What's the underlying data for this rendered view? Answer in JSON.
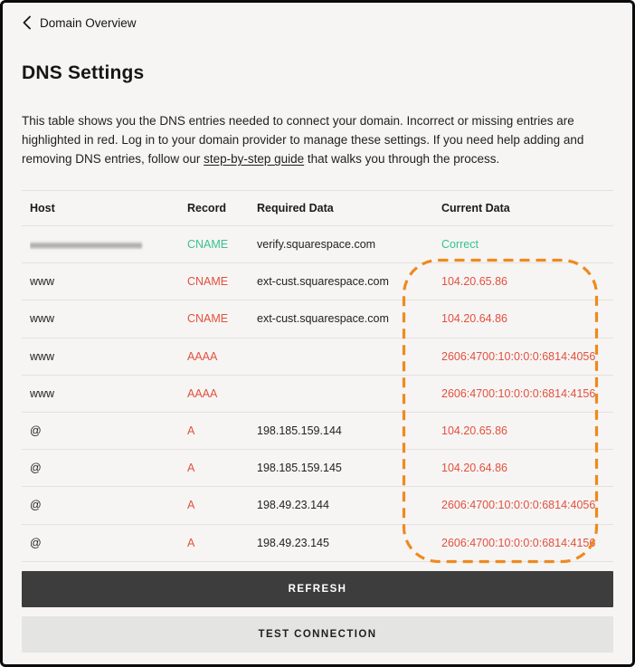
{
  "page": {
    "back_label": "Domain Overview",
    "title": "DNS Settings"
  },
  "description": {
    "before_link": "This table shows you the DNS entries needed to connect your domain. Incorrect or missing entries are highlighted in red. Log in to your domain provider to manage these settings. If you need help adding and removing DNS entries, follow our ",
    "link_text": "step-by-step guide",
    "after_link": " that walks you through the process."
  },
  "table": {
    "columns": [
      "Host",
      "Record",
      "Required Data",
      "Current Data"
    ],
    "rows": [
      {
        "host": "",
        "host_redacted": true,
        "record": "CNAME",
        "record_status": "ok",
        "required": "verify.squarespace.com",
        "current": "Correct",
        "current_status": "ok"
      },
      {
        "host": "www",
        "host_redacted": false,
        "record": "CNAME",
        "record_status": "error",
        "required": "ext-cust.squarespace.com",
        "current": "104.20.65.86",
        "current_status": "error"
      },
      {
        "host": "www",
        "host_redacted": false,
        "record": "CNAME",
        "record_status": "error",
        "required": "ext-cust.squarespace.com",
        "current": "104.20.64.86",
        "current_status": "error"
      },
      {
        "host": "www",
        "host_redacted": false,
        "record": "AAAA",
        "record_status": "error",
        "required": "",
        "current": "2606:4700:10:0:0:0:6814:4056",
        "current_status": "error"
      },
      {
        "host": "www",
        "host_redacted": false,
        "record": "AAAA",
        "record_status": "error",
        "required": "",
        "current": "2606:4700:10:0:0:0:6814:4156",
        "current_status": "error"
      },
      {
        "host": "@",
        "host_redacted": false,
        "record": "A",
        "record_status": "error",
        "required": "198.185.159.144",
        "current": "104.20.65.86",
        "current_status": "error"
      },
      {
        "host": "@",
        "host_redacted": false,
        "record": "A",
        "record_status": "error",
        "required": "198.185.159.145",
        "current": "104.20.64.86",
        "current_status": "error"
      },
      {
        "host": "@",
        "host_redacted": false,
        "record": "A",
        "record_status": "error",
        "required": "198.49.23.144",
        "current": "2606:4700:10:0:0:0:6814:4056",
        "current_status": "error"
      },
      {
        "host": "@",
        "host_redacted": false,
        "record": "A",
        "record_status": "error",
        "required": "198.49.23.145",
        "current": "2606:4700:10:0:0:0:6814:4156",
        "current_status": "error"
      }
    ]
  },
  "annotation": {
    "type": "dashed-rounded-rectangle",
    "purpose": "highlights incorrect Current Data values"
  },
  "buttons": {
    "refresh": "REFRESH",
    "test_connection": "TEST CONNECTION"
  },
  "colors": {
    "ok": "#36c290",
    "error": "#e3503d",
    "highlight": "#ee8a1f",
    "button_dark": "#3d3d3d",
    "button_light": "#e4e4e2",
    "background": "#f6f5f4"
  }
}
